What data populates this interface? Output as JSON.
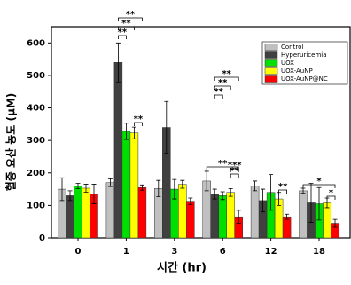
{
  "chart_data": {
    "type": "bar",
    "x_label": "시간 (hr)",
    "y_label": "혈중 요산 농도 (μM)",
    "categories": [
      "0",
      "1",
      "3",
      "6",
      "12",
      "18"
    ],
    "ylim": [
      0,
      650
    ],
    "yticks": [
      0,
      100,
      200,
      300,
      400,
      500,
      600
    ],
    "legend_position": "upper right",
    "series": [
      {
        "name": "Control",
        "color": "#c0c0c0",
        "values": [
          150,
          170,
          152,
          175,
          160,
          145
        ],
        "errors": [
          35,
          12,
          25,
          30,
          15,
          8
        ]
      },
      {
        "name": "Hyperuricemia",
        "color": "#404040",
        "values": [
          130,
          540,
          340,
          135,
          115,
          108
        ],
        "errors": [
          15,
          60,
          80,
          15,
          35,
          60
        ]
      },
      {
        "name": "UOX",
        "color": "#00e000",
        "values": [
          160,
          328,
          150,
          130,
          140,
          105
        ],
        "errors": [
          8,
          25,
          30,
          12,
          55,
          50
        ]
      },
      {
        "name": "UOX-AuNP",
        "color": "#ffff00",
        "values": [
          153,
          323,
          165,
          140,
          120,
          108
        ],
        "errors": [
          12,
          18,
          12,
          12,
          20,
          15
        ]
      },
      {
        "name": "UOX-AuNP@NC",
        "color": "#ff0000",
        "values": [
          135,
          155,
          113,
          65,
          65,
          45
        ],
        "errors": [
          30,
          8,
          10,
          20,
          8,
          12
        ]
      }
    ],
    "annotations": [
      "**",
      "**",
      "**",
      "**",
      "**",
      "**",
      "**",
      "**",
      "**",
      "***",
      "**",
      "*",
      "*"
    ]
  }
}
